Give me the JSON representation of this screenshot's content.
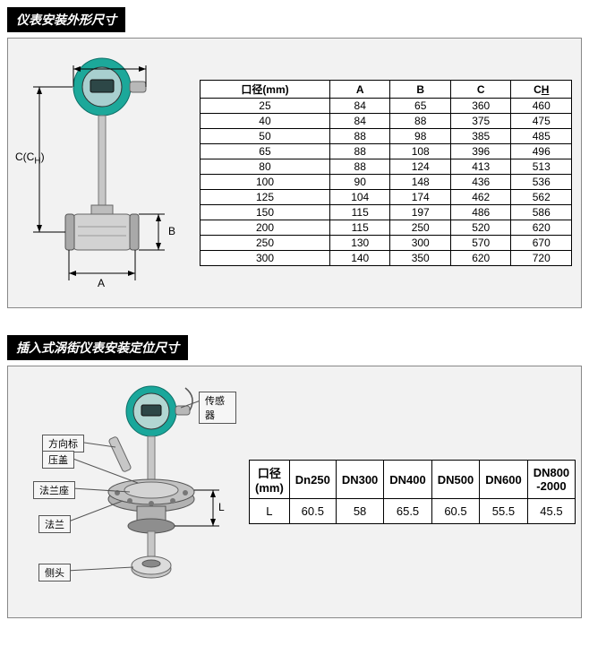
{
  "section1": {
    "title": "仪表安装外形尺寸",
    "background": "#f2f2f2",
    "border_color": "#888888",
    "device_colors": {
      "head": "#1ca89a",
      "display_bg": "#a8cfcf",
      "display_outline": "#333333",
      "body": "#c7c7c7",
      "body_dark": "#a9a9a9",
      "flange": "#bdbdbd"
    },
    "dim_labels": {
      "c_ch": "C(C",
      "c_ch_sub": "H",
      "c_ch_close": ")",
      "a": "A",
      "b": "B"
    },
    "table": {
      "columns": [
        "口径(mm)",
        "A",
        "B",
        "C",
        "CH"
      ],
      "rows": [
        [
          "25",
          "84",
          "65",
          "360",
          "460"
        ],
        [
          "40",
          "84",
          "88",
          "375",
          "475"
        ],
        [
          "50",
          "88",
          "98",
          "385",
          "485"
        ],
        [
          "65",
          "88",
          "108",
          "396",
          "496"
        ],
        [
          "80",
          "88",
          "124",
          "413",
          "513"
        ],
        [
          "100",
          "90",
          "148",
          "436",
          "536"
        ],
        [
          "125",
          "104",
          "174",
          "462",
          "562"
        ],
        [
          "150",
          "115",
          "197",
          "486",
          "586"
        ],
        [
          "200",
          "115",
          "250",
          "520",
          "620"
        ],
        [
          "250",
          "130",
          "300",
          "570",
          "670"
        ],
        [
          "300",
          "140",
          "350",
          "620",
          "720"
        ]
      ]
    }
  },
  "section2": {
    "title": "插入式涡街仪表安装定位尺寸",
    "background": "#f2f2f2",
    "border_color": "#888888",
    "device_colors": {
      "head": "#1aa79b",
      "display_bg": "#b2d6d2",
      "display_outline": "#333333",
      "stem": "#c7c7c7",
      "flange": "#b2b2b2",
      "flange_dark": "#8e8e8e"
    },
    "callouts": {
      "sensor": "传感器",
      "direction": "方向标",
      "cover": "压盖",
      "seat": "法兰座",
      "flange": "法兰",
      "side": "侧头"
    },
    "dim_l": "L",
    "table": {
      "columns": [
        "口径\n(mm)",
        "Dn250",
        "DN300",
        "DN400",
        "DN500",
        "DN600",
        "DN800\n-2000"
      ],
      "row_label": "L",
      "row": [
        "60.5",
        "58",
        "65.5",
        "60.5",
        "55.5",
        "45.5"
      ]
    }
  }
}
